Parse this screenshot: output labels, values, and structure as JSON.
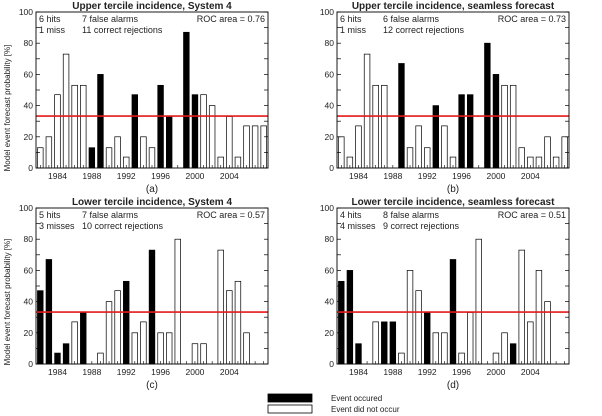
{
  "figure": {
    "ylabel": "Model event forecast probability [%]",
    "legend": [
      {
        "label": "Event occured",
        "fill": "#000000"
      },
      {
        "label": "Event did not occur",
        "fill": "#ffffff"
      }
    ]
  },
  "chart_data": [
    {
      "type": "bar",
      "title": "Upper tercile incidence, System 4",
      "panel_label": "(a)",
      "stats": {
        "hits": "6 hits",
        "misses": "1 miss",
        "false_alarms": "7 false alarms",
        "correct_rejections": "11 correct rejections",
        "roc": "ROC area = 0.76"
      },
      "x": [
        1982,
        1983,
        1984,
        1985,
        1986,
        1987,
        1988,
        1989,
        1990,
        1991,
        1992,
        1993,
        1994,
        1995,
        1996,
        1997,
        1998,
        1999,
        2000,
        2001,
        2002,
        2003,
        2004,
        2005,
        2006,
        2007,
        2008
      ],
      "values": [
        13,
        20,
        47,
        73,
        53,
        53,
        13,
        60,
        13,
        20,
        7,
        47,
        20,
        13,
        53,
        33,
        0,
        87,
        47,
        47,
        40,
        7,
        33,
        7,
        27,
        27,
        27
      ],
      "occurred": [
        0,
        0,
        0,
        0,
        0,
        0,
        1,
        1,
        0,
        0,
        0,
        1,
        0,
        0,
        1,
        1,
        0,
        1,
        1,
        0,
        0,
        0,
        0,
        0,
        0,
        0,
        0
      ],
      "threshold": 33.3,
      "ylim": [
        0,
        100
      ],
      "xticks": [
        "1984",
        "1988",
        "1992",
        "1996",
        "2000",
        "2004"
      ]
    },
    {
      "type": "bar",
      "title": "Upper tercile incidence, seamless forecast",
      "panel_label": "(b)",
      "stats": {
        "hits": "6 hits",
        "misses": "1 miss",
        "false_alarms": "6 false alarms",
        "correct_rejections": "12 correct rejections",
        "roc": "ROC area = 0.73"
      },
      "x": [
        1982,
        1983,
        1984,
        1985,
        1986,
        1987,
        1988,
        1989,
        1990,
        1991,
        1992,
        1993,
        1994,
        1995,
        1996,
        1997,
        1998,
        1999,
        2000,
        2001,
        2002,
        2003,
        2004,
        2005,
        2006,
        2007,
        2008
      ],
      "values": [
        20,
        7,
        27,
        73,
        53,
        53,
        0,
        67,
        13,
        27,
        13,
        40,
        27,
        7,
        47,
        47,
        0,
        80,
        60,
        53,
        53,
        13,
        7,
        7,
        20,
        7,
        20
      ],
      "occurred": [
        0,
        0,
        0,
        0,
        0,
        0,
        1,
        1,
        0,
        0,
        0,
        1,
        0,
        0,
        1,
        1,
        0,
        1,
        1,
        0,
        0,
        0,
        0,
        0,
        0,
        0,
        0
      ],
      "threshold": 33.3,
      "ylim": [
        0,
        100
      ],
      "xticks": [
        "1984",
        "1988",
        "1992",
        "1996",
        "2000",
        "2004"
      ]
    },
    {
      "type": "bar",
      "title": "Lower tercile incidence, System 4",
      "panel_label": "(c)",
      "stats": {
        "hits": "5 hits",
        "misses": "3 misses",
        "false_alarms": "7 false alarms",
        "correct_rejections": "10 correct rejections",
        "roc": "ROC area = 0.57"
      },
      "x": [
        1982,
        1983,
        1984,
        1985,
        1986,
        1987,
        1988,
        1989,
        1990,
        1991,
        1992,
        1993,
        1994,
        1995,
        1996,
        1997,
        1998,
        1999,
        2000,
        2001,
        2002,
        2003,
        2004,
        2005,
        2006,
        2007,
        2008
      ],
      "values": [
        47,
        67,
        7,
        13,
        27,
        33,
        0,
        7,
        40,
        47,
        53,
        20,
        27,
        73,
        20,
        20,
        80,
        0,
        13,
        13,
        0,
        73,
        47,
        53,
        20,
        0,
        0
      ],
      "occurred": [
        1,
        1,
        1,
        1,
        0,
        1,
        0,
        0,
        0,
        0,
        1,
        0,
        0,
        1,
        0,
        0,
        0,
        0,
        0,
        0,
        1,
        0,
        0,
        0,
        0,
        0,
        0
      ],
      "threshold": 33.3,
      "ylim": [
        0,
        100
      ],
      "xticks": [
        "1984",
        "1988",
        "1992",
        "1996",
        "2000",
        "2004"
      ]
    },
    {
      "type": "bar",
      "title": "Lower tercile incidence, seamless forecast",
      "panel_label": "(d)",
      "stats": {
        "hits": "4 hits",
        "misses": "4 misses",
        "false_alarms": "8 false alarms",
        "correct_rejections": "9 correct rejections",
        "roc": "ROC area = 0.51"
      },
      "x": [
        1982,
        1983,
        1984,
        1985,
        1986,
        1987,
        1988,
        1989,
        1990,
        1991,
        1992,
        1993,
        1994,
        1995,
        1996,
        1997,
        1998,
        1999,
        2000,
        2001,
        2002,
        2003,
        2004,
        2005,
        2006,
        2007,
        2008
      ],
      "values": [
        53,
        60,
        13,
        0,
        27,
        27,
        27,
        7,
        60,
        47,
        33,
        20,
        20,
        67,
        7,
        33,
        80,
        0,
        7,
        20,
        13,
        73,
        27,
        60,
        40,
        0,
        0
      ],
      "occurred": [
        1,
        1,
        1,
        1,
        0,
        1,
        1,
        0,
        0,
        0,
        1,
        0,
        0,
        1,
        0,
        0,
        0,
        0,
        0,
        0,
        1,
        0,
        0,
        0,
        0,
        0,
        0
      ],
      "threshold": 33.3,
      "ylim": [
        0,
        100
      ],
      "xticks": [
        "1984",
        "1988",
        "1992",
        "1996",
        "2000",
        "2004"
      ]
    }
  ]
}
